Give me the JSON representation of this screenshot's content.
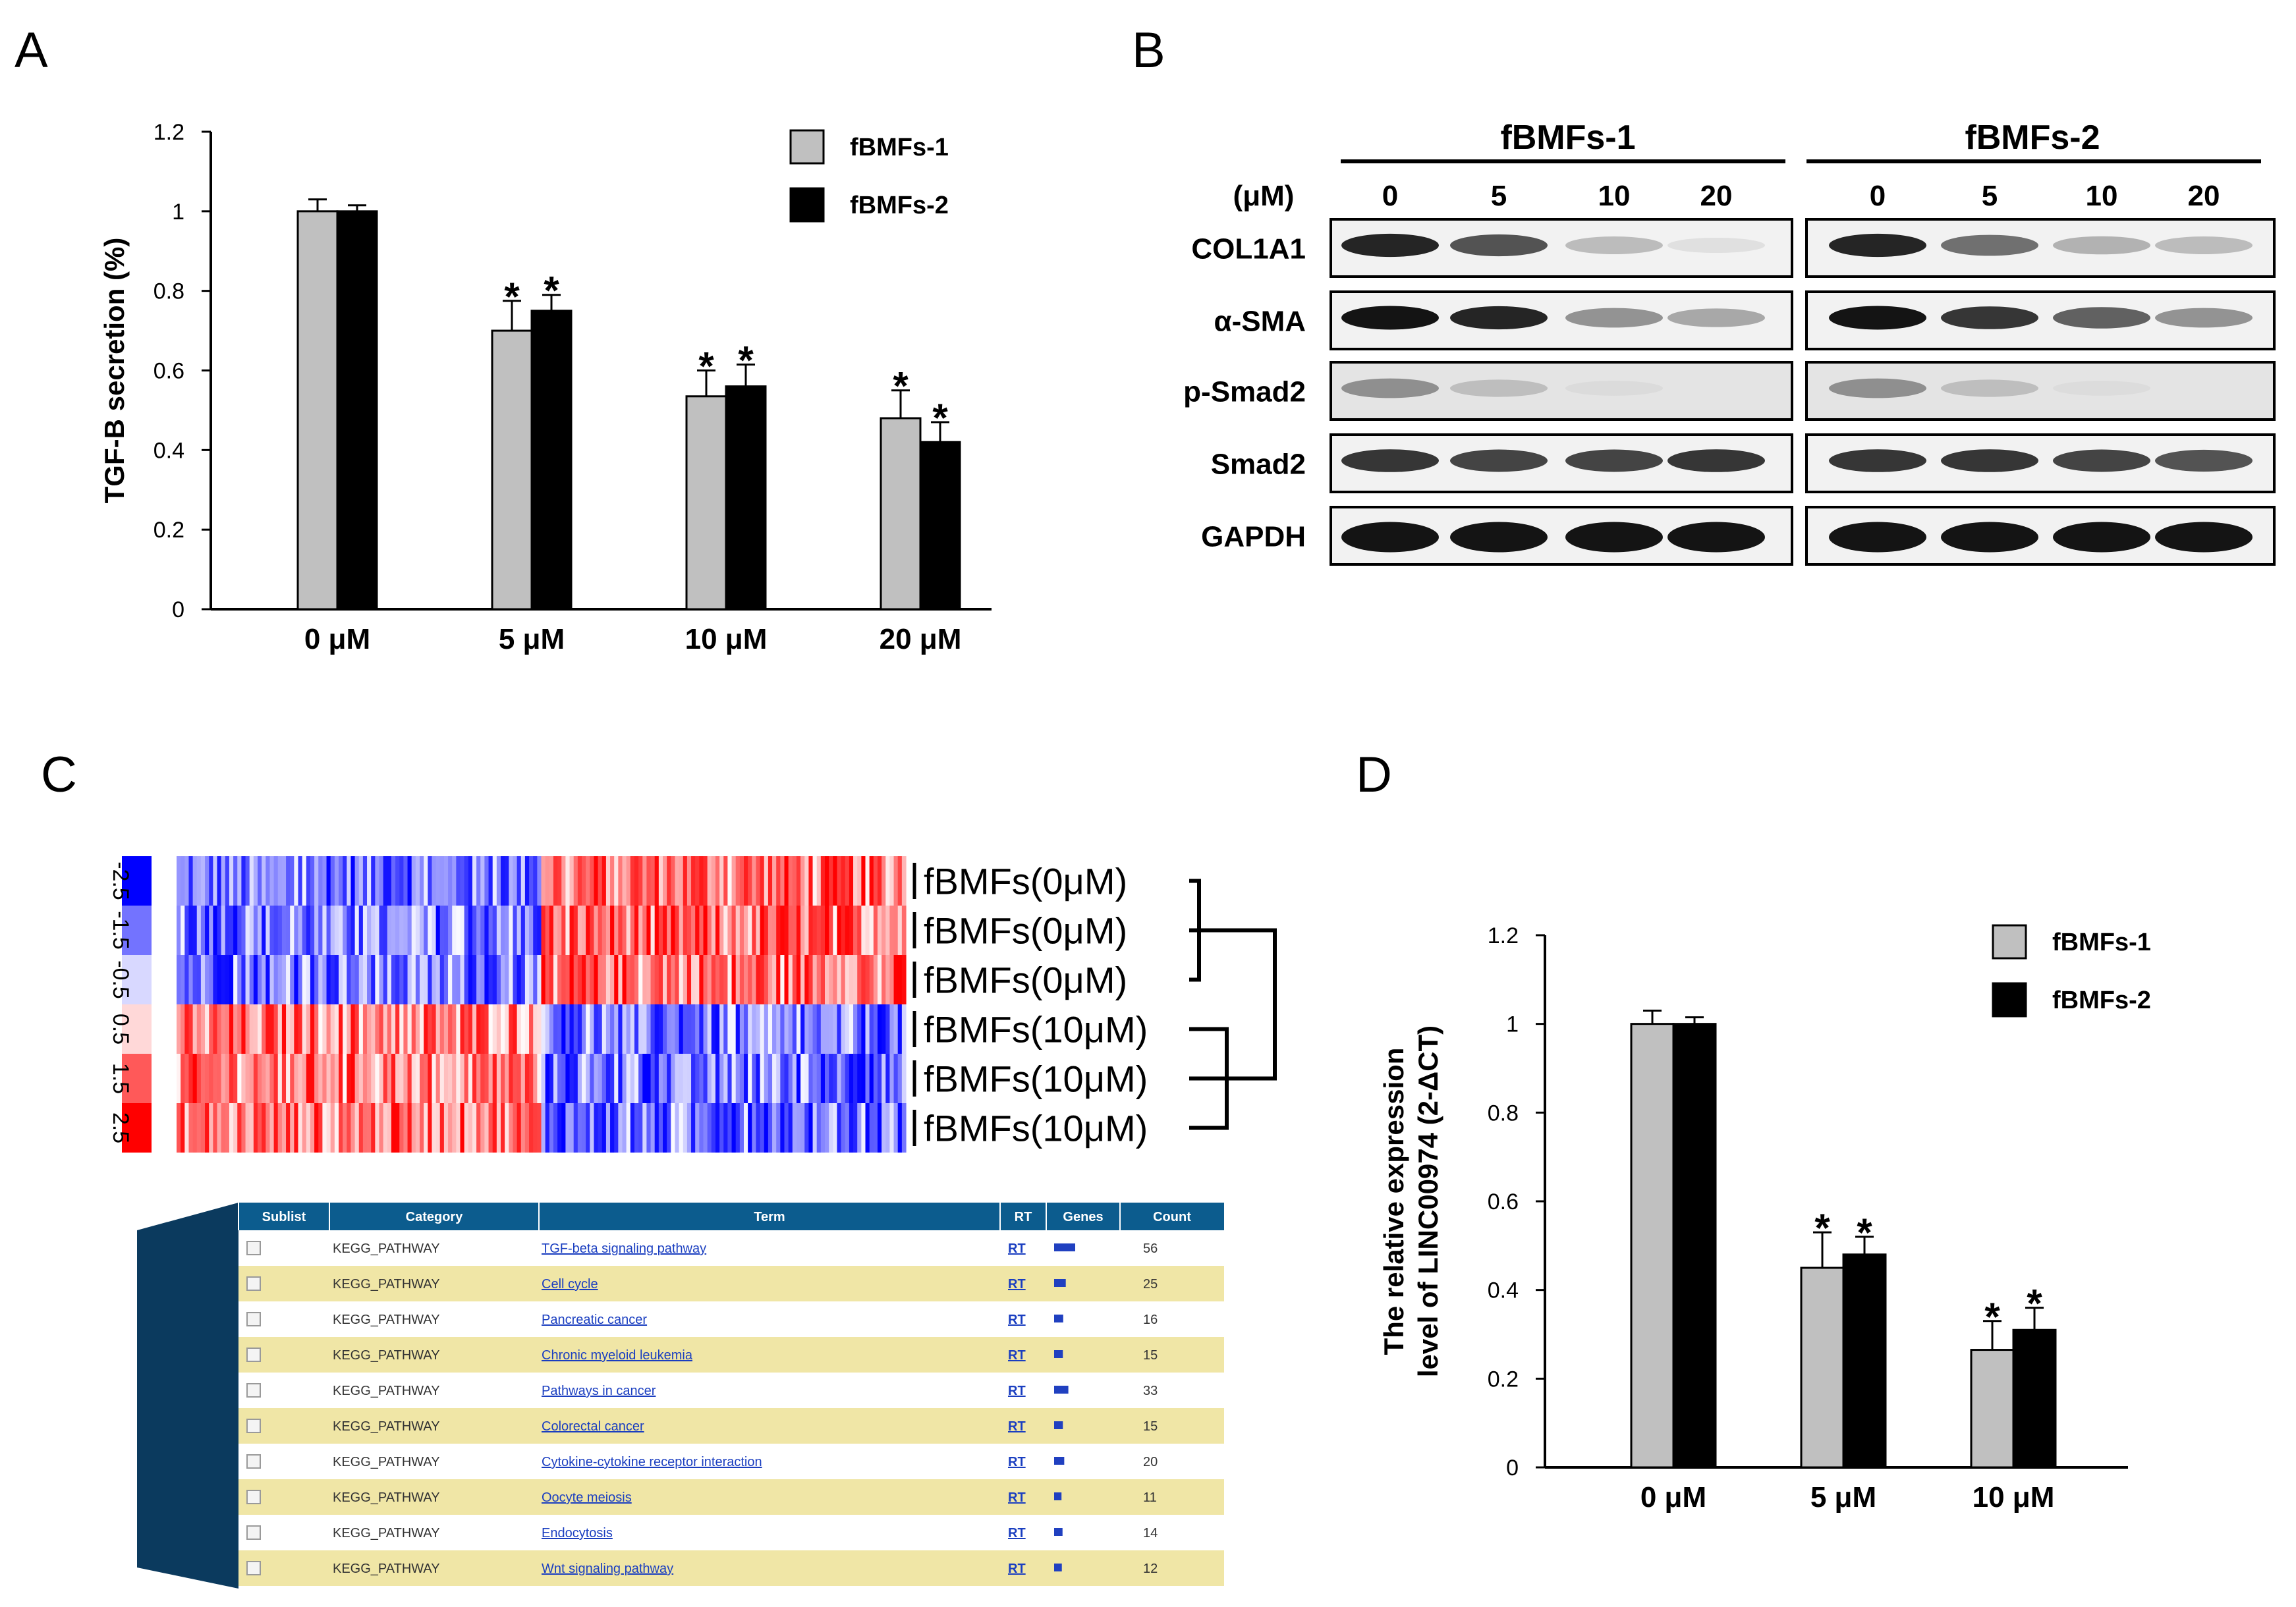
{
  "panels": {
    "a": "A",
    "b": "B",
    "c": "C",
    "d": "D"
  },
  "colors": {
    "series1": "#c0c0c0",
    "series2": "#000000",
    "heat_blue": "#0000ff",
    "heat_red": "#ff0000",
    "table_header": "#0c5c8e",
    "table_band": "#f0e6a6",
    "table_wedge": "#0b3a5e"
  },
  "chart_data": [
    {
      "type": "bar",
      "panel": "A",
      "categories": [
        "0 μM",
        "5 μM",
        "10 μM",
        "20 μM"
      ],
      "series": [
        {
          "name": "fBMFs-1",
          "values": [
            1.0,
            0.7,
            0.535,
            0.48
          ],
          "errors": [
            0.03,
            0.075,
            0.065,
            0.07
          ],
          "significant": [
            false,
            true,
            true,
            true
          ]
        },
        {
          "name": "fBMFs-2",
          "values": [
            1.0,
            0.75,
            0.56,
            0.42
          ],
          "errors": [
            0.015,
            0.04,
            0.055,
            0.05
          ],
          "significant": [
            false,
            true,
            true,
            true
          ]
        }
      ],
      "ylabel": "TGF-B secretion (%)",
      "ylim": [
        0,
        1.2
      ],
      "yticks": [
        "0",
        "0.2",
        "0.4",
        "0.6",
        "0.8",
        "1",
        "1.2"
      ],
      "star": "*",
      "legend_position": "top-right"
    },
    {
      "type": "bar",
      "panel": "D",
      "categories": [
        "0 μM",
        "5 μM",
        "10 μM"
      ],
      "series": [
        {
          "name": "fBMFs-1",
          "values": [
            1.0,
            0.45,
            0.265
          ],
          "errors": [
            0.03,
            0.08,
            0.065
          ],
          "significant": [
            false,
            true,
            true
          ]
        },
        {
          "name": "fBMFs-2",
          "values": [
            1.0,
            0.48,
            0.31
          ],
          "errors": [
            0.015,
            0.04,
            0.05
          ],
          "significant": [
            false,
            true,
            true
          ]
        }
      ],
      "ylabel_lines": [
        "The relative expression",
        "level of LINC00974 (2-ΔCT)"
      ],
      "ylim": [
        0,
        1.2
      ],
      "yticks": [
        "0",
        "0.2",
        "0.4",
        "0.6",
        "0.8",
        "1",
        "1.2"
      ],
      "star": "*",
      "legend_position": "top-right"
    },
    {
      "type": "heatmap",
      "panel": "C",
      "row_labels": [
        "fBMFs(0μM)",
        "fBMFs(0μM)",
        "fBMFs(0μM)",
        "fBMFs(10μM)",
        "fBMFs(10μM)",
        "fBMFs(10μM)"
      ],
      "scale": [
        "-2.5",
        "-1.5",
        "-0.5",
        "0.5",
        "1.5",
        "2.5"
      ],
      "pattern": "left block of columns high in 10μM rows, right block high in 0μM rows"
    }
  ],
  "western_blot": {
    "groups": [
      "fBMFs-1",
      "fBMFs-2"
    ],
    "unit": "(μM)",
    "concentrations": [
      "0",
      "5",
      "10",
      "20"
    ],
    "rows": [
      {
        "label": "COL1A1",
        "intensities": [
          [
            0.95,
            0.8,
            0.35,
            0.08
          ],
          [
            0.95,
            0.7,
            0.4,
            0.35
          ]
        ]
      },
      {
        "label": "α-SMA",
        "intensities": [
          [
            1.0,
            0.95,
            0.55,
            0.45
          ],
          [
            1.0,
            0.9,
            0.75,
            0.55
          ]
        ]
      },
      {
        "label": "p-Smad2",
        "intensities": [
          [
            0.55,
            0.3,
            0.05,
            0.0
          ],
          [
            0.55,
            0.3,
            0.04,
            0.0
          ]
        ]
      },
      {
        "label": "Smad2",
        "intensities": [
          [
            0.9,
            0.85,
            0.85,
            0.9
          ],
          [
            0.9,
            0.9,
            0.85,
            0.8
          ]
        ]
      },
      {
        "label": "GAPDH",
        "intensities": [
          [
            1.0,
            1.0,
            1.0,
            1.0
          ],
          [
            1.0,
            1.0,
            1.0,
            1.0
          ]
        ]
      }
    ]
  },
  "kegg_table": {
    "columns": [
      "Sublist",
      "Category",
      "Term",
      "RT",
      "Genes",
      "Count"
    ],
    "rows": [
      {
        "category": "KEGG_PATHWAY",
        "term": "TGF-beta signaling pathway",
        "rt": "RT",
        "count": "56",
        "genes_fraction": 1.0
      },
      {
        "category": "KEGG_PATHWAY",
        "term": "Cell cycle",
        "rt": "RT",
        "count": "25",
        "genes_fraction": 0.45
      },
      {
        "category": "KEGG_PATHWAY",
        "term": "Pancreatic cancer",
        "rt": "RT",
        "count": "16",
        "genes_fraction": 0.3
      },
      {
        "category": "KEGG_PATHWAY",
        "term": "Chronic myeloid leukemia",
        "rt": "RT",
        "count": "15",
        "genes_fraction": 0.28
      },
      {
        "category": "KEGG_PATHWAY",
        "term": "Pathways in cancer",
        "rt": "RT",
        "count": "33",
        "genes_fraction": 0.6
      },
      {
        "category": "KEGG_PATHWAY",
        "term": "Colorectal cancer",
        "rt": "RT",
        "count": "15",
        "genes_fraction": 0.28
      },
      {
        "category": "KEGG_PATHWAY",
        "term": "Cytokine-cytokine receptor interaction",
        "rt": "RT",
        "count": "20",
        "genes_fraction": 0.36
      },
      {
        "category": "KEGG_PATHWAY",
        "term": "Oocyte meiosis",
        "rt": "RT",
        "count": "11",
        "genes_fraction": 0.2
      },
      {
        "category": "KEGG_PATHWAY",
        "term": "Endocytosis",
        "rt": "RT",
        "count": "14",
        "genes_fraction": 0.26
      },
      {
        "category": "KEGG_PATHWAY",
        "term": "Wnt signaling pathway",
        "rt": "RT",
        "count": "12",
        "genes_fraction": 0.22
      }
    ]
  }
}
